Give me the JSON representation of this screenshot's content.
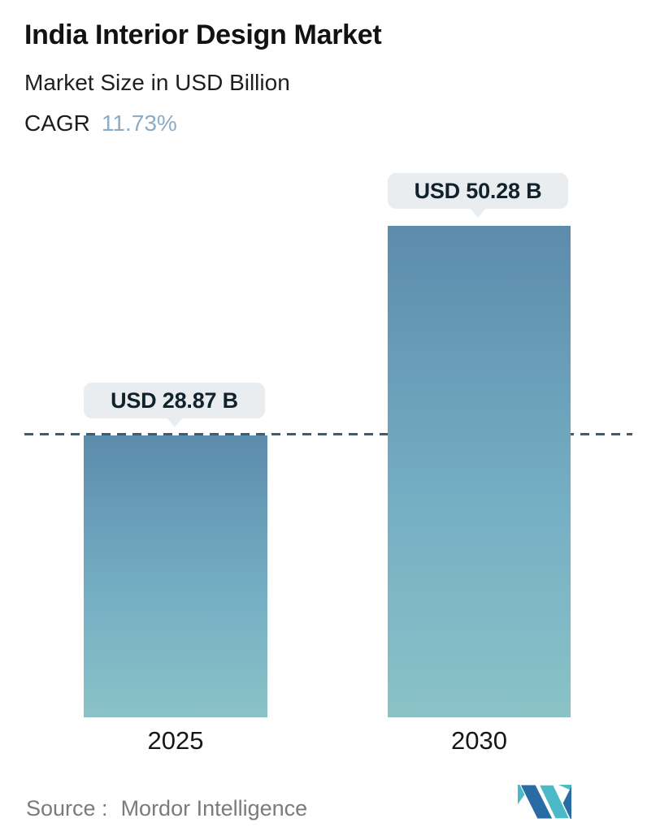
{
  "header": {
    "title": "India Interior Design Market",
    "subtitle": "Market Size in USD Billion",
    "cagr_label": "CAGR",
    "cagr_value": "11.73%"
  },
  "chart_data": {
    "type": "bar",
    "categories": [
      "2025",
      "2030"
    ],
    "values": [
      28.87,
      50.28
    ],
    "value_labels": [
      "USD 28.87 B",
      "USD 50.28 B"
    ],
    "title": "India Interior Design Market",
    "subtitle": "Market Size in USD Billion",
    "cagr_percent": 11.73,
    "xlabel": "",
    "ylabel": "Market Size in USD Billion",
    "ylim": [
      0,
      50.28
    ],
    "grid": false,
    "legend": "none",
    "reference_line": {
      "at_value": 28.87,
      "style": "dashed",
      "color": "#3e5d72"
    }
  },
  "footer": {
    "source_label": "Source :",
    "source_value": "Mordor Intelligence"
  },
  "colors": {
    "title_text": "#121212",
    "cagr_value_text": "#8cabc4",
    "bar_gradient_top": "#5d8bac",
    "bar_gradient_mid": "#74aec3",
    "bar_gradient_bottom": "#8ac2c7",
    "dashed_line": "#3e5d72",
    "value_pill_bg": "#e9edef",
    "value_pill_text": "#10222c",
    "source_text": "#7b7b7b",
    "logo_blue": "#2a6ba3",
    "logo_teal": "#4bbac6"
  },
  "icons": {
    "logo": "mordor-intelligence-logo"
  }
}
